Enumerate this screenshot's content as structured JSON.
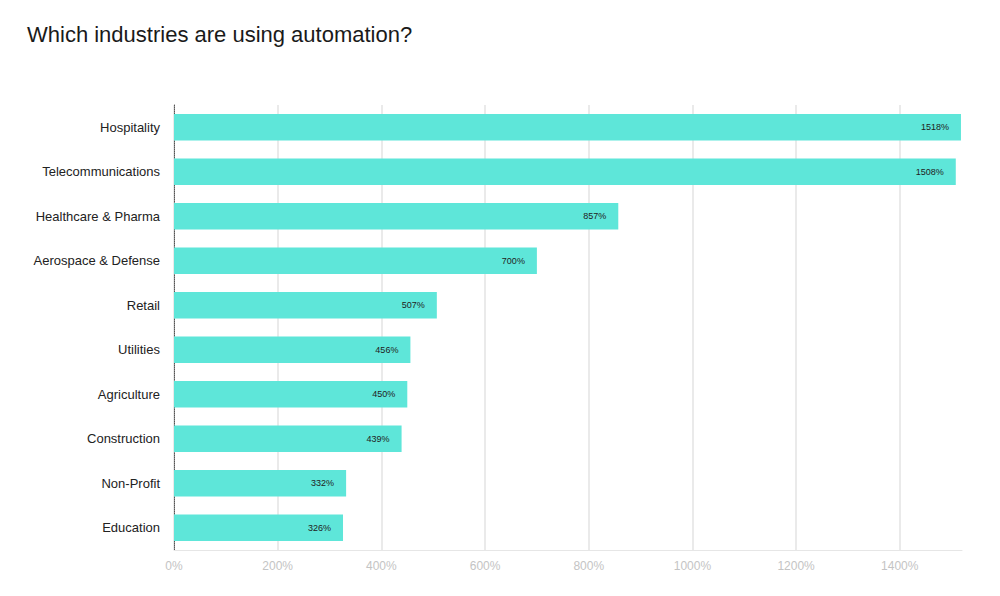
{
  "chart_data": {
    "type": "bar",
    "title": "Which industries are using automation?",
    "orientation": "horizontal",
    "categories": [
      "Hospitality",
      "Telecommunications",
      "Healthcare & Pharma",
      "Aerospace & Defense",
      "Retail",
      "Utilities",
      "Agriculture",
      "Construction",
      "Non-Profit",
      "Education"
    ],
    "values": [
      1518,
      1508,
      857,
      700,
      507,
      456,
      450,
      439,
      332,
      326
    ],
    "value_labels": [
      "1518%",
      "1508%",
      "857%",
      "700%",
      "507%",
      "456%",
      "450%",
      "439%",
      "332%",
      "326%"
    ],
    "color": "#5ee6d9",
    "xlim": [
      0,
      1520
    ],
    "xticks": [
      {
        "value": 0,
        "label": "0%"
      },
      {
        "value": 200,
        "label": "200%"
      },
      {
        "value": 400,
        "label": "400%"
      },
      {
        "value": 600,
        "label": "600%"
      },
      {
        "value": 800,
        "label": "800%"
      },
      {
        "value": 1000,
        "label": "1000%"
      },
      {
        "value": 1200,
        "label": "1200%"
      },
      {
        "value": 1400,
        "label": "1400%"
      }
    ],
    "grid": true,
    "data_labels": true
  }
}
